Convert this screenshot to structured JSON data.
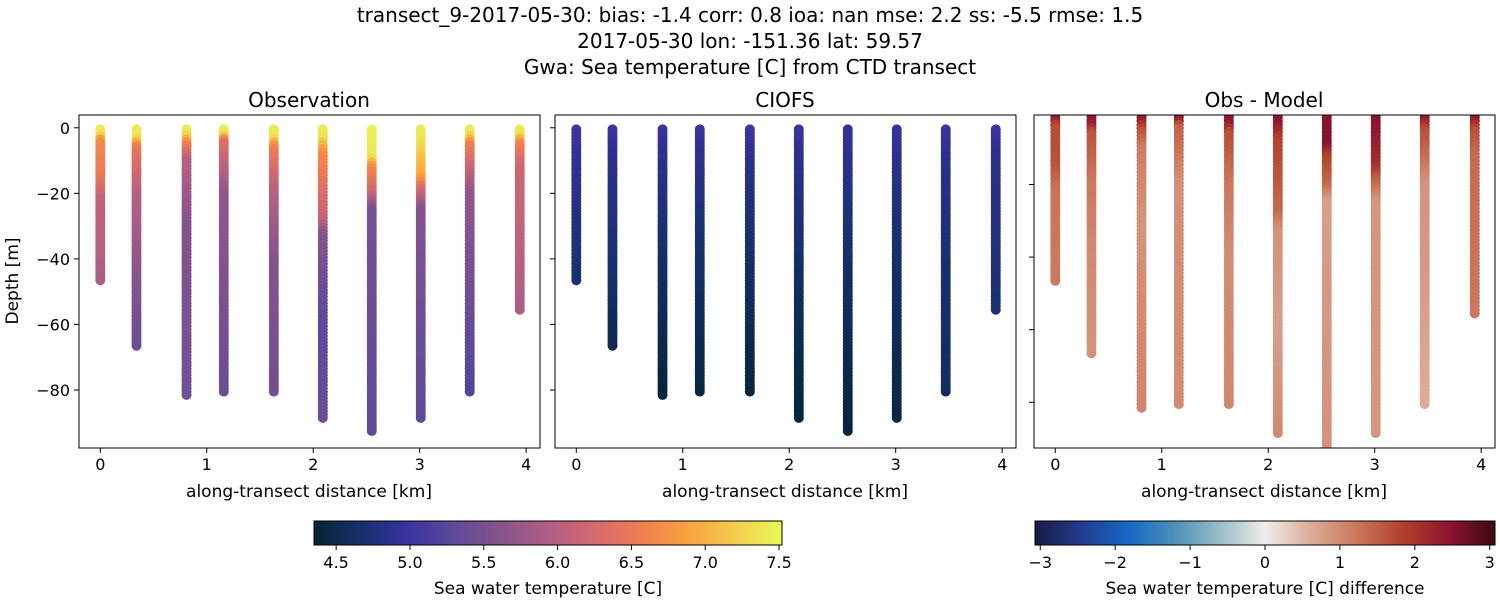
{
  "title_lines": [
    "transect_9-2017-05-30: bias: -1.4  corr: 0.8  ioa: nan  mse: 2.2  ss: -5.5  rmse: 1.5",
    "2017-05-30 lon: -151.36 lat: 59.57",
    "Gwa: Sea temperature [C] from CTD transect"
  ],
  "chart_data": [
    {
      "type": "scatter",
      "title": "Observation",
      "xlabel": "along-transect distance [km]",
      "ylabel": "Depth [m]",
      "xlim": [
        -0.2,
        4.13
      ],
      "ylim": [
        -97.7,
        3.9
      ],
      "xticks": [
        0,
        1,
        2,
        3,
        4
      ],
      "yticks": [
        0,
        -20,
        -40,
        -60,
        -80
      ],
      "ytick_labels_shown": true,
      "color_by": "obs",
      "colormap": "thermal",
      "clim": [
        4.35,
        7.52
      ]
    },
    {
      "type": "scatter",
      "title": "CIOFS",
      "xlabel": "along-transect distance [km]",
      "ylabel": "",
      "xlim": [
        -0.2,
        4.13
      ],
      "ylim": [
        -97.7,
        3.9
      ],
      "xticks": [
        0,
        1,
        2,
        3,
        4
      ],
      "yticks": [
        0,
        -20,
        -40,
        -60,
        -80
      ],
      "ytick_labels_shown": false,
      "color_by": "model",
      "colormap": "thermal",
      "clim": [
        4.35,
        7.52
      ]
    },
    {
      "type": "scatter",
      "title": "Obs - Model",
      "xlabel": "along-transect distance [km]",
      "ylabel": "",
      "xlim": [
        -0.2,
        4.13
      ],
      "ylim": [
        -92.6,
        -0.85
      ],
      "xticks": [
        0,
        1,
        2,
        3,
        4
      ],
      "yticks": [
        -20,
        -40,
        -60,
        -80
      ],
      "ytick_labels_shown": false,
      "color_by": "diff",
      "colormap": "balance",
      "clim": [
        -3.07,
        3.07
      ]
    }
  ],
  "profiles": [
    {
      "x": 0.0,
      "bottom": -47,
      "obs": [
        [
          0,
          7.4
        ],
        [
          -2,
          7.4
        ],
        [
          -4,
          6.7
        ],
        [
          -15,
          6.5
        ],
        [
          -22,
          6.1
        ],
        [
          -47,
          5.9
        ]
      ],
      "model": [
        [
          0,
          5.05
        ],
        [
          -10,
          4.9
        ],
        [
          -47,
          4.7
        ]
      ]
    },
    {
      "x": 0.34,
      "bottom": -67,
      "obs": [
        [
          0,
          7.4
        ],
        [
          -3,
          7.4
        ],
        [
          -6,
          6.5
        ],
        [
          -20,
          6.0
        ],
        [
          -40,
          5.7
        ],
        [
          -67,
          5.4
        ]
      ],
      "model": [
        [
          0,
          5.0
        ],
        [
          -10,
          4.85
        ],
        [
          -40,
          4.7
        ],
        [
          -67,
          4.5
        ]
      ]
    },
    {
      "x": 0.81,
      "bottom": -82,
      "obs": [
        [
          0,
          7.4
        ],
        [
          -2,
          7.4
        ],
        [
          -5,
          6.6
        ],
        [
          -10,
          6.0
        ],
        [
          -30,
          5.6
        ],
        [
          -82,
          5.45
        ]
      ],
      "model": [
        [
          0,
          5.0
        ],
        [
          -10,
          4.85
        ],
        [
          -40,
          4.65
        ],
        [
          -82,
          4.4
        ]
      ]
    },
    {
      "x": 1.16,
      "bottom": -81,
      "obs": [
        [
          0,
          7.4
        ],
        [
          -2,
          7.4
        ],
        [
          -4,
          6.4
        ],
        [
          -20,
          5.7
        ],
        [
          -81,
          5.4
        ]
      ],
      "model": [
        [
          0,
          5.0
        ],
        [
          -10,
          4.85
        ],
        [
          -40,
          4.65
        ],
        [
          -81,
          4.42
        ]
      ]
    },
    {
      "x": 1.63,
      "bottom": -81,
      "obs": [
        [
          0,
          7.4
        ],
        [
          -3,
          7.4
        ],
        [
          -6,
          6.6
        ],
        [
          -20,
          6.0
        ],
        [
          -40,
          5.6
        ],
        [
          -81,
          5.45
        ]
      ],
      "model": [
        [
          0,
          5.05
        ],
        [
          -10,
          4.85
        ],
        [
          -40,
          4.65
        ],
        [
          -81,
          4.42
        ]
      ]
    },
    {
      "x": 2.09,
      "bottom": -89,
      "obs": [
        [
          0,
          7.4
        ],
        [
          -3,
          7.4
        ],
        [
          -8,
          6.7
        ],
        [
          -28,
          6.1
        ],
        [
          -33,
          5.6
        ],
        [
          -60,
          5.3
        ],
        [
          -89,
          5.4
        ]
      ],
      "model": [
        [
          0,
          5.0
        ],
        [
          -10,
          4.85
        ],
        [
          -40,
          4.65
        ],
        [
          -89,
          4.4
        ]
      ]
    },
    {
      "x": 2.55,
      "bottom": -93,
      "obs": [
        [
          0,
          7.45
        ],
        [
          -9,
          7.4
        ],
        [
          -12,
          6.7
        ],
        [
          -20,
          6.2
        ],
        [
          -25,
          5.5
        ],
        [
          -93,
          5.3
        ]
      ],
      "model": [
        [
          0,
          4.95
        ],
        [
          -10,
          4.85
        ],
        [
          -40,
          4.65
        ],
        [
          -93,
          4.4
        ]
      ]
    },
    {
      "x": 3.01,
      "bottom": -89,
      "obs": [
        [
          0,
          7.4
        ],
        [
          -3,
          7.4
        ],
        [
          -15,
          6.9
        ],
        [
          -18,
          6.4
        ],
        [
          -25,
          5.6
        ],
        [
          -89,
          5.3
        ]
      ],
      "model": [
        [
          0,
          4.95
        ],
        [
          -10,
          4.85
        ],
        [
          -40,
          4.65
        ],
        [
          -89,
          4.45
        ]
      ]
    },
    {
      "x": 3.47,
      "bottom": -81,
      "obs": [
        [
          0,
          7.4
        ],
        [
          -2,
          7.4
        ],
        [
          -5,
          6.6
        ],
        [
          -12,
          6.2
        ],
        [
          -20,
          5.7
        ],
        [
          -81,
          5.2
        ]
      ],
      "model": [
        [
          0,
          5.0
        ],
        [
          -10,
          4.85
        ],
        [
          -40,
          4.7
        ],
        [
          -81,
          4.6
        ]
      ]
    },
    {
      "x": 3.94,
      "bottom": -56,
      "obs": [
        [
          0,
          7.4
        ],
        [
          -2,
          7.4
        ],
        [
          -5,
          6.6
        ],
        [
          -12,
          6.2
        ],
        [
          -56,
          5.9
        ]
      ],
      "model": [
        [
          0,
          5.0
        ],
        [
          -10,
          4.85
        ],
        [
          -56,
          4.7
        ]
      ]
    }
  ],
  "colorbars": [
    {
      "label": "Sea water temperature [C]",
      "colormap": "thermal",
      "range": [
        4.35,
        7.52
      ],
      "ticks": [
        4.5,
        5.0,
        5.5,
        6.0,
        6.5,
        7.0,
        7.5
      ],
      "tick_labels": [
        "4.5",
        "5.0",
        "5.5",
        "6.0",
        "6.5",
        "7.0",
        "7.5"
      ]
    },
    {
      "label": "Sea water temperature [C] difference",
      "colormap": "balance",
      "range": [
        -3.07,
        3.07
      ],
      "ticks": [
        -3,
        -2,
        -1,
        0,
        1,
        2,
        3
      ],
      "tick_labels": [
        "−3",
        "−2",
        "−1",
        "0",
        "1",
        "2",
        "3"
      ]
    }
  ],
  "colormaps": {
    "thermal": [
      "#042333",
      "#16306b",
      "#3a32a0",
      "#5e4a98",
      "#87548d",
      "#b05f84",
      "#d5696f",
      "#f07e51",
      "#f9a33f",
      "#f3cd4c",
      "#e8fa5b"
    ],
    "balance": [
      "#181c43",
      "#233b8f",
      "#1666c4",
      "#4b8fba",
      "#97bcc6",
      "#f1ecec",
      "#dcab98",
      "#c9775a",
      "#b2402b",
      "#8e1430",
      "#3c0912"
    ]
  }
}
